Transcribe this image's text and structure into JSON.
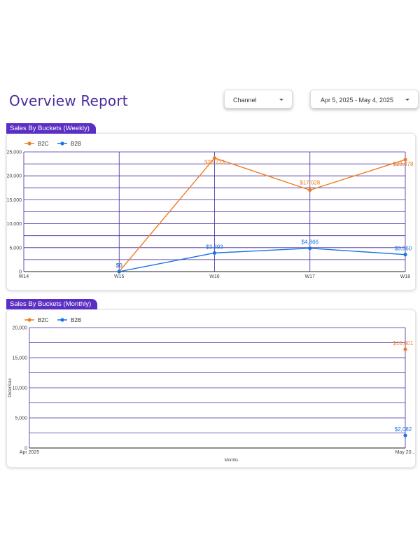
{
  "page": {
    "title": "Overview Report"
  },
  "filters": {
    "channel_label": "Channel",
    "date_range": "Apr 5, 2025 - May 4, 2025"
  },
  "colors": {
    "accent": "#5a2fc4",
    "title": "#4b2a9e",
    "b2c": "#f07d22",
    "b2b": "#1a73e8",
    "grid": "#4527a0"
  },
  "icons": {
    "dropdown": "caret-down-icon"
  },
  "chart_data": [
    {
      "id": "weekly",
      "type": "line",
      "title": "Sales By Buckets (Weekly)",
      "categories": [
        "W14",
        "W15",
        "W16",
        "W17",
        "W18"
      ],
      "series": [
        {
          "name": "B2C",
          "values": [
            null,
            0,
            23733,
            17028,
            23378
          ],
          "labels": [
            null,
            "$0",
            "$23,733",
            "$17,028",
            "$23,378"
          ]
        },
        {
          "name": "B2B",
          "values": [
            null,
            0,
            3893,
            4866,
            3560
          ],
          "labels": [
            null,
            "$0",
            "$3,893",
            "$4,866",
            "$3,560"
          ]
        }
      ],
      "ylim": [
        0,
        25000
      ],
      "yticks": [
        0,
        5000,
        10000,
        15000,
        20000,
        25000
      ],
      "ytick_labels": [
        "0",
        "5,000",
        "10,000",
        "15,000",
        "20,000",
        "25,000"
      ],
      "xlabel": "",
      "ylabel": "",
      "grid": true,
      "legend": "top-left"
    },
    {
      "id": "monthly",
      "type": "line",
      "title": "Sales By Buckets (Monthly)",
      "categories": [
        "Apr 2025",
        "May 20..."
      ],
      "series": [
        {
          "name": "B2C",
          "values": [
            null,
            16401
          ],
          "labels": [
            null,
            "$16,401"
          ]
        },
        {
          "name": "B2B",
          "values": [
            null,
            2082
          ],
          "labels": [
            null,
            "$2,082"
          ]
        }
      ],
      "ylim": [
        0,
        20000
      ],
      "yticks": [
        0,
        5000,
        10000,
        15000,
        20000
      ],
      "ytick_labels": [
        "0",
        "5,000",
        "10,000",
        "15,000",
        "20,000"
      ],
      "xlabel": "Months",
      "ylabel": "OrderSale",
      "grid": true,
      "legend": "top-left"
    }
  ]
}
